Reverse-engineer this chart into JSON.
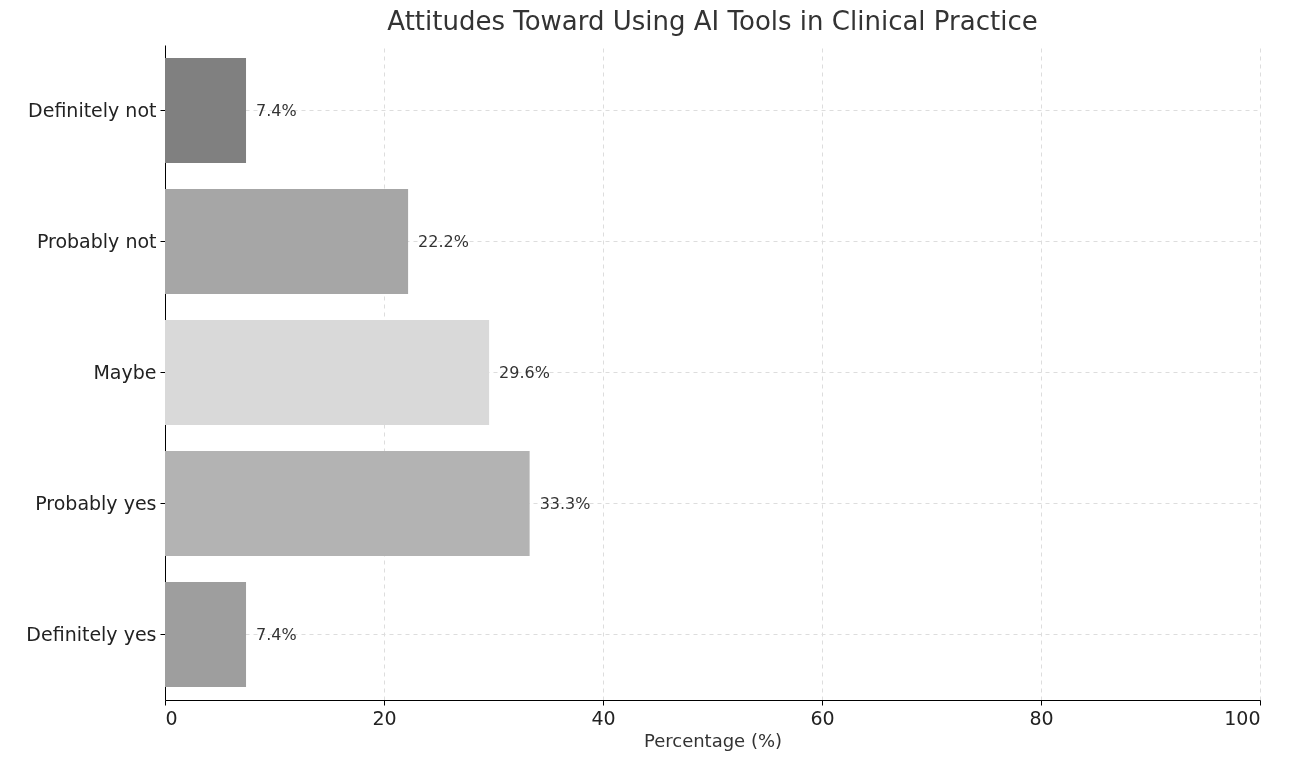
{
  "chart_data": {
    "type": "bar",
    "orientation": "horizontal",
    "title": "Attitudes Toward Using AI Tools in Clinical Practice",
    "xlabel": "Percentage (%)",
    "categories": [
      "Definitely not",
      "Probably not",
      "Maybe",
      "Probably yes",
      "Definitely yes"
    ],
    "values": [
      7.4,
      22.2,
      29.6,
      33.3,
      7.4
    ],
    "value_labels": [
      "7.4%",
      "22.2%",
      "29.6%",
      "33.3%",
      "7.4%"
    ],
    "colors": [
      "#808080",
      "#a6a6a6",
      "#d9d9d9",
      "#b3b3b3",
      "#9e9e9e"
    ],
    "xlim": [
      0,
      100
    ],
    "xticks": [
      0,
      20,
      40,
      60,
      80,
      100
    ],
    "grid": true
  }
}
